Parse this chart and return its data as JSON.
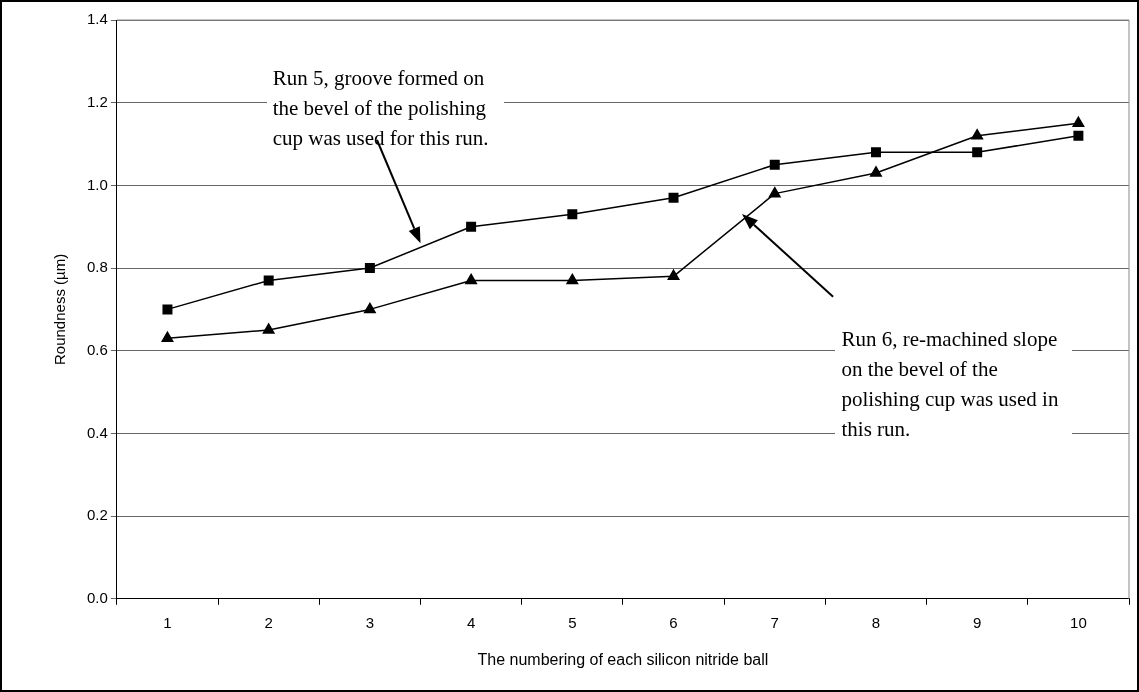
{
  "chart_data": {
    "type": "line",
    "xlabel": "The numbering of each silicon nitride ball",
    "ylabel": "Roundness (µm)",
    "categories": [
      "1",
      "2",
      "3",
      "4",
      "5",
      "6",
      "7",
      "8",
      "9",
      "10"
    ],
    "series": [
      {
        "color": "#000000",
        "marker": "square",
        "values": [
          0.7,
          0.77,
          0.8,
          0.9,
          0.93,
          0.97,
          1.05,
          1.08,
          1.08,
          1.12
        ]
      },
      {
        "color": "#000000",
        "marker": "triangle",
        "values": [
          0.63,
          0.65,
          0.7,
          0.77,
          0.77,
          0.78,
          0.98,
          1.03,
          1.12,
          1.15
        ]
      }
    ],
    "ylim": [
      0,
      1.4
    ],
    "yticks": [
      {
        "value": 0,
        "label": "0.0"
      },
      0.2,
      0.4,
      0.6,
      0.8,
      {
        "value": 1,
        "label": "1.0"
      },
      1.2,
      1.4
    ],
    "grid": "y",
    "legend": false,
    "line_style": "solid",
    "annotations": [
      "Run 5, groove formed on the bevel of the polishing cup was used for this run.",
      "Run 6, re-machined slope on the bevel of the polishing cup was used in this run."
    ]
  }
}
